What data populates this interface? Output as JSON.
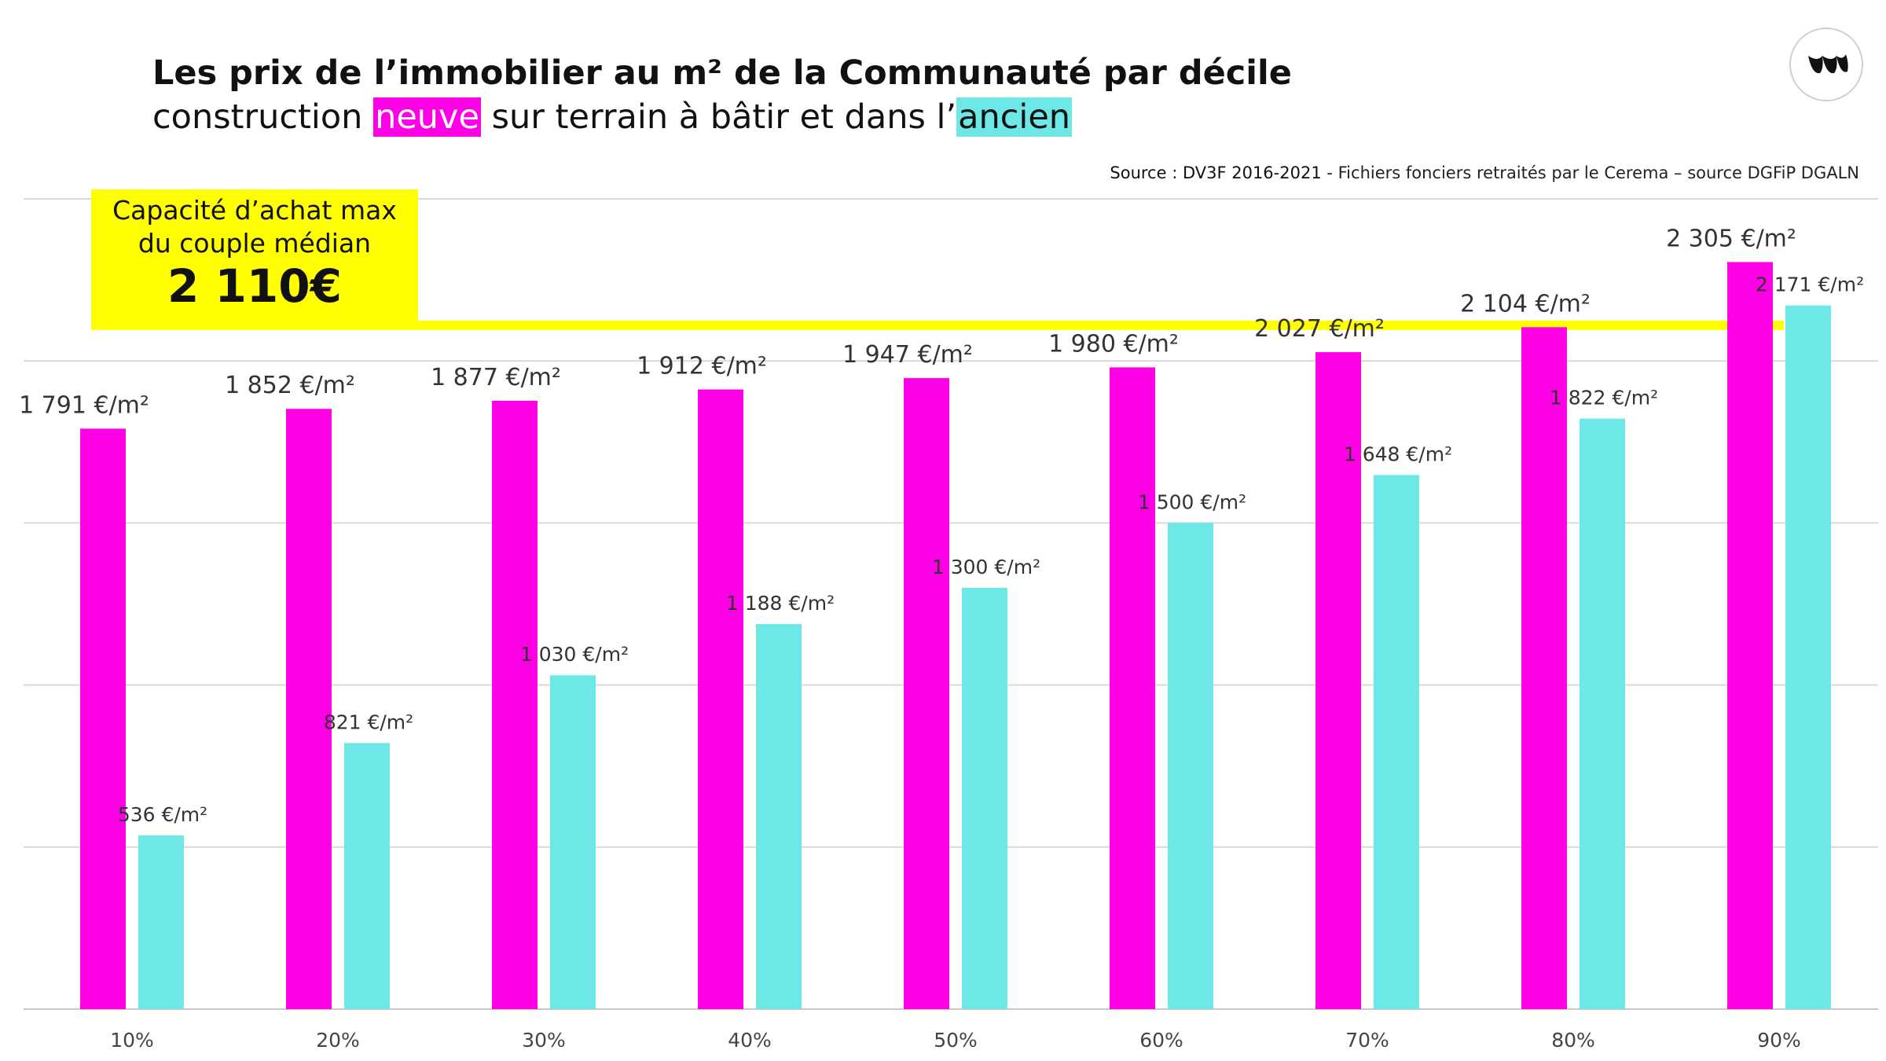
{
  "title": {
    "line1": "Les prix de l’immobilier au m² de la Communauté par décile",
    "line2_prefix": "construction ",
    "line2_neuve": "neuve",
    "line2_middle": " sur terrain à bâtir et dans l’",
    "line2_ancien": "ancien"
  },
  "source": {
    "strong": "Source : DV3F 2016-2021",
    "rest": " - Fichiers fonciers retraités par le Cerema – source DGFiP DGALN"
  },
  "capacity": {
    "label": "Capacité d’achat max\ndu couple médian",
    "value": "2 110€"
  },
  "logo": {
    "icon": "brand-logo-icon"
  },
  "colors": {
    "neuve": "#ff00e6",
    "ancien": "#6ee8e6",
    "threshold": "#ffff00",
    "grid": "#d9d9d9"
  },
  "chart_data": {
    "type": "bar",
    "categories": [
      "10%",
      "20%",
      "30%",
      "40%",
      "50%",
      "60%",
      "70%",
      "80%",
      "90%"
    ],
    "series": [
      {
        "name": "neuve",
        "values": [
          1791,
          1852,
          1877,
          1912,
          1947,
          1980,
          2027,
          2104,
          2305
        ],
        "labels": [
          "1 791 €/m²",
          "1 852 €/m²",
          "1 877 €/m²",
          "1 912 €/m²",
          "1 947 €/m²",
          "1 980 €/m²",
          "2 027 €/m²",
          "2 104 €/m²",
          "2 305 €/m²"
        ]
      },
      {
        "name": "ancien",
        "values": [
          536,
          821,
          1030,
          1188,
          1300,
          1500,
          1648,
          1822,
          2171
        ],
        "labels": [
          "536 €/m²",
          "821 €/m²",
          "1 030 €/m²",
          "1 188 €/m²",
          "1 300 €/m²",
          "1 500 €/m²",
          "1 648 €/m²",
          "1 822 €/m²",
          "2 171 €/m²"
        ]
      }
    ],
    "threshold": 2110,
    "ylim": [
      0,
      2500
    ],
    "grid": true,
    "title": "",
    "xlabel": "",
    "ylabel": ""
  }
}
